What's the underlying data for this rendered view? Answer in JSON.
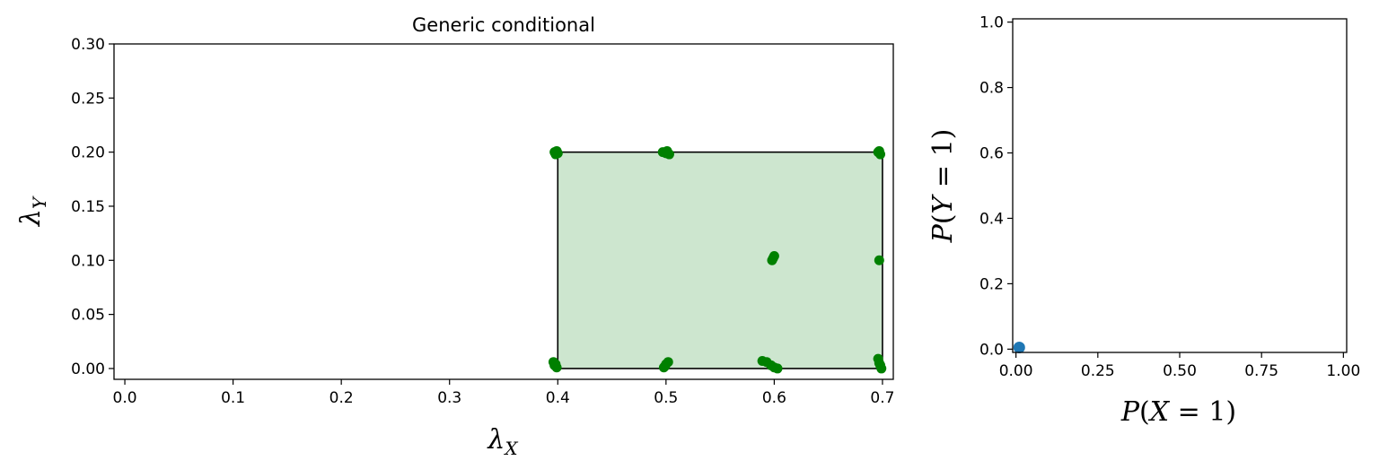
{
  "chart_data": [
    {
      "type": "scatter",
      "title": "Generic conditional",
      "xlabel": "λX",
      "ylabel": "λY",
      "xlim": [
        -0.01,
        0.71
      ],
      "ylim": [
        -0.01,
        0.3
      ],
      "xticks": [
        "0.0",
        "0.1",
        "0.2",
        "0.3",
        "0.4",
        "0.5",
        "0.6",
        "0.7"
      ],
      "xtick_values": [
        0.0,
        0.1,
        0.2,
        0.3,
        0.4,
        0.5,
        0.6,
        0.7
      ],
      "yticks": [
        "0.00",
        "0.05",
        "0.10",
        "0.15",
        "0.20",
        "0.25",
        "0.30"
      ],
      "ytick_values": [
        0.0,
        0.05,
        0.1,
        0.15,
        0.2,
        0.25,
        0.3
      ],
      "region": {
        "x": [
          0.4,
          0.7
        ],
        "y": [
          0.0,
          0.2
        ],
        "fill": "#cde6cf",
        "edge": "#000000"
      },
      "series": [
        {
          "color": "#008000",
          "points": [
            [
              0.397,
              0.2
            ],
            [
              0.398,
              0.198
            ],
            [
              0.4,
              0.199
            ],
            [
              0.399,
              0.201
            ],
            [
              0.497,
              0.2
            ],
            [
              0.5,
              0.199
            ],
            [
              0.503,
              0.198
            ],
            [
              0.501,
              0.201
            ],
            [
              0.696,
              0.2
            ],
            [
              0.698,
              0.198
            ],
            [
              0.697,
              0.201
            ],
            [
              0.598,
              0.1
            ],
            [
              0.6,
              0.104
            ],
            [
              0.599,
              0.102
            ],
            [
              0.697,
              0.1
            ],
            [
              0.396,
              0.006
            ],
            [
              0.397,
              0.003
            ],
            [
              0.399,
              0.001
            ],
            [
              0.398,
              0.004
            ],
            [
              0.498,
              0.001
            ],
            [
              0.5,
              0.004
            ],
            [
              0.502,
              0.006
            ],
            [
              0.499,
              0.002
            ],
            [
              0.589,
              0.007
            ],
            [
              0.593,
              0.006
            ],
            [
              0.597,
              0.003
            ],
            [
              0.6,
              0.001
            ],
            [
              0.603,
              0.0
            ],
            [
              0.696,
              0.009
            ],
            [
              0.697,
              0.005
            ],
            [
              0.698,
              0.003
            ],
            [
              0.699,
              0.0
            ]
          ]
        }
      ]
    },
    {
      "type": "scatter",
      "title": "",
      "xlabel": "P(X = 1)",
      "ylabel": "P(Y = 1)",
      "xlim": [
        -0.01,
        1.01
      ],
      "ylim": [
        -0.01,
        1.01
      ],
      "xticks": [
        "0.00",
        "0.25",
        "0.50",
        "0.75",
        "1.00"
      ],
      "xtick_values": [
        0.0,
        0.25,
        0.5,
        0.75,
        1.0
      ],
      "yticks": [
        "0.0",
        "0.2",
        "0.4",
        "0.6",
        "0.8",
        "1.0"
      ],
      "ytick_values": [
        0.0,
        0.2,
        0.4,
        0.6,
        0.8,
        1.0
      ],
      "series": [
        {
          "color": "#1f77b4",
          "points": [
            [
              0.01,
              0.005
            ]
          ]
        }
      ]
    }
  ]
}
